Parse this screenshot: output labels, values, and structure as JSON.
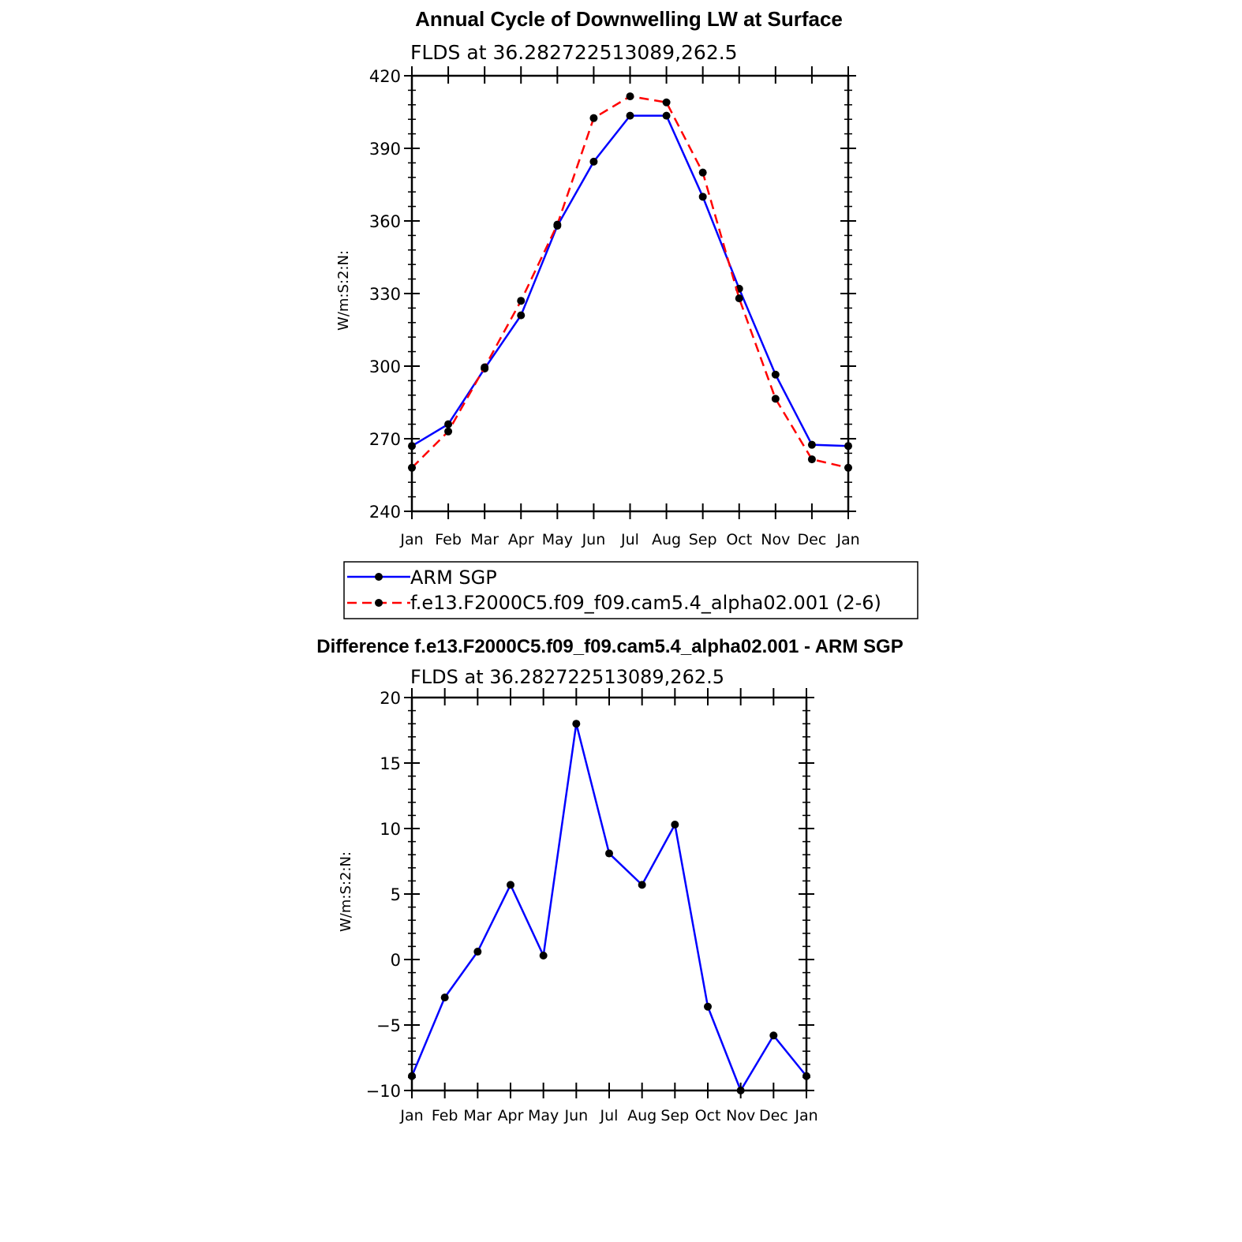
{
  "chart_data": [
    {
      "type": "line",
      "title": "Annual Cycle of Downwelling LW at Surface",
      "subtitle": "FLDS at 36.282722513089,262.5",
      "xlabel": "",
      "ylabel": "W/m:S:2:N:",
      "categories": [
        "Jan",
        "Feb",
        "Mar",
        "Apr",
        "May",
        "Jun",
        "Jul",
        "Aug",
        "Sep",
        "Oct",
        "Nov",
        "Dec",
        "Jan"
      ],
      "ylim": [
        240,
        420
      ],
      "yticks": [
        240,
        270,
        300,
        330,
        360,
        390,
        420
      ],
      "series": [
        {
          "name": "ARM SGP",
          "color": "#0000ff",
          "dash": "solid",
          "values": [
            267,
            276,
            299,
            321,
            358,
            384.5,
            403.5,
            403.5,
            370,
            332,
            296.5,
            267.5,
            267
          ]
        },
        {
          "name": "f.e13.F2000C5.f09_f09.cam5.4_alpha02.001 (2-6)",
          "color": "#ff0000",
          "dash": "dashed",
          "values": [
            258,
            273,
            299.5,
            327,
            358.5,
            402.5,
            411.5,
            409,
            380,
            328,
            286.5,
            261.5,
            258
          ]
        }
      ],
      "legend": "below"
    },
    {
      "type": "line",
      "title": "Difference f.e13.F2000C5.f09_f09.cam5.4_alpha02.001 - ARM SGP",
      "subtitle": "FLDS at 36.282722513089,262.5",
      "xlabel": "",
      "ylabel": "W/m:S:2:N:",
      "categories": [
        "Jan",
        "Feb",
        "Mar",
        "Apr",
        "May",
        "Jun",
        "Jul",
        "Aug",
        "Sep",
        "Oct",
        "Nov",
        "Dec",
        "Jan"
      ],
      "ylim": [
        -10,
        20
      ],
      "yticks": [
        -10,
        -5,
        0,
        5,
        10,
        15,
        20
      ],
      "ytick_labels": [
        "−10",
        "−5",
        "0",
        "5",
        "10",
        "15",
        "20"
      ],
      "series": [
        {
          "name": "Difference",
          "color": "#0000ff",
          "dash": "solid",
          "values": [
            -8.9,
            -2.9,
            0.6,
            5.7,
            0.3,
            18,
            8.1,
            5.7,
            10.3,
            -3.6,
            -10,
            -5.8,
            -8.9
          ]
        }
      ]
    }
  ]
}
